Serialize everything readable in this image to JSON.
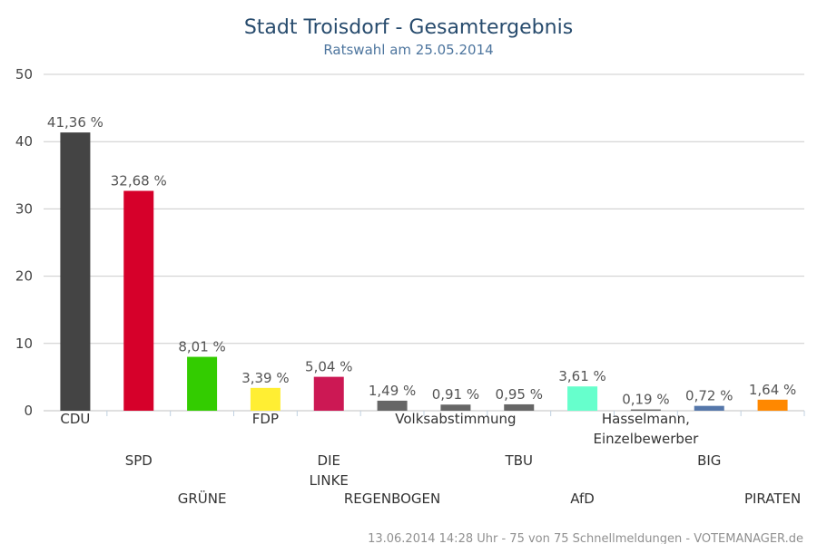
{
  "chart_data": {
    "type": "bar",
    "title": "Stadt Troisdorf - Gesamtergebnis",
    "subtitle": "Ratswahl am 25.05.2014",
    "ylim": [
      0,
      50
    ],
    "yticks": [
      0,
      10,
      20,
      30,
      40,
      50
    ],
    "grid": true,
    "categories": [
      "CDU",
      "SPD",
      "GRÜNE",
      "FDP",
      "DIE LINKE",
      "REGENBOGEN",
      "Volksabstimmung",
      "TBU",
      "AfD",
      "Hasselmann, Einzelbewerber",
      "BIG",
      "PIRATEN"
    ],
    "category_lines": [
      [
        "CDU"
      ],
      [
        "SPD"
      ],
      [
        "GRÜNE"
      ],
      [
        "FDP"
      ],
      [
        "DIE",
        "LINKE"
      ],
      [
        "REGENBOGEN"
      ],
      [
        "Volksabstimmung"
      ],
      [
        "TBU"
      ],
      [
        "AfD"
      ],
      [
        "Hasselmann,",
        "Einzelbewerber"
      ],
      [
        "BIG"
      ],
      [
        "PIRATEN"
      ]
    ],
    "values": [
      41.36,
      32.68,
      8.01,
      3.39,
      5.04,
      1.49,
      0.91,
      0.95,
      3.61,
      0.19,
      0.72,
      1.64
    ],
    "value_labels": [
      "41,36 %",
      "32,68 %",
      "8,01 %",
      "3,39 %",
      "5,04 %",
      "1,49 %",
      "0,91 %",
      "0,95 %",
      "3,61 %",
      "0,19 %",
      "0,72 %",
      "1,64 %"
    ],
    "colors": [
      "#444444",
      "#d6002a",
      "#33cc00",
      "#ffee33",
      "#cc1854",
      "#666666",
      "#666666",
      "#666666",
      "#66ffcc",
      "#666666",
      "#5577aa",
      "#ff8800"
    ]
  },
  "footer": "13.06.2014 14:28 Uhr - 75 von 75 Schnellmeldungen - VOTEMANAGER.de"
}
